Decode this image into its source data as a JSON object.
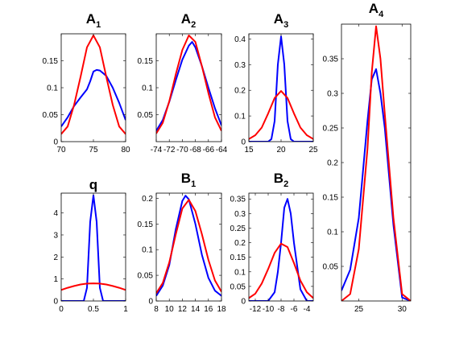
{
  "colors": {
    "series_a": "#0000ff",
    "series_b": "#ff0000",
    "axes": "#000000",
    "background": "#ffffff"
  },
  "chart_data": [
    {
      "id": "A1",
      "type": "line",
      "title": "A",
      "title_sub": "1",
      "xlim": [
        70,
        80
      ],
      "ylim": [
        0,
        0.2
      ],
      "xticks": [
        70,
        75,
        80
      ],
      "xtick_labels": [
        "70",
        "75",
        "80"
      ],
      "yticks": [
        0,
        0.05,
        0.1,
        0.15
      ],
      "ytick_labels": [
        "0",
        "0.05",
        "0.1",
        "0.15"
      ],
      "series": [
        {
          "color": "#0000ff",
          "x": [
            70,
            71,
            72,
            73,
            74,
            74.5,
            75,
            75.5,
            76,
            77,
            78,
            79,
            80
          ],
          "y": [
            0.028,
            0.045,
            0.066,
            0.082,
            0.097,
            0.112,
            0.13,
            0.133,
            0.132,
            0.122,
            0.1,
            0.072,
            0.04
          ]
        },
        {
          "color": "#ff0000",
          "x": [
            70,
            71,
            72,
            73,
            74,
            75,
            76,
            77,
            78,
            79,
            80
          ],
          "y": [
            0.014,
            0.028,
            0.068,
            0.12,
            0.175,
            0.197,
            0.175,
            0.12,
            0.068,
            0.028,
            0.014
          ]
        }
      ]
    },
    {
      "id": "A2",
      "type": "line",
      "title": "A",
      "title_sub": "2",
      "xlim": [
        -74,
        -64
      ],
      "ylim": [
        0,
        0.2
      ],
      "xticks": [
        -74,
        -72,
        -70,
        -68,
        -66,
        -64
      ],
      "xtick_labels": [
        "-74",
        "-72",
        "-70",
        "-68",
        "-66",
        "-64"
      ],
      "yticks": [
        0.05,
        0.1,
        0.15
      ],
      "ytick_labels": [
        "0.05",
        "0.1",
        "0.15"
      ],
      "series": [
        {
          "color": "#0000ff",
          "x": [
            -74,
            -73,
            -72,
            -71,
            -70,
            -69,
            -68.5,
            -68,
            -67,
            -66,
            -65,
            -64
          ],
          "y": [
            0.02,
            0.04,
            0.074,
            0.114,
            0.152,
            0.178,
            0.185,
            0.175,
            0.14,
            0.1,
            0.062,
            0.03
          ]
        },
        {
          "color": "#ff0000",
          "x": [
            -74,
            -73,
            -72,
            -71,
            -70,
            -69,
            -68,
            -67,
            -66,
            -65,
            -64
          ],
          "y": [
            0.015,
            0.035,
            0.075,
            0.125,
            0.17,
            0.197,
            0.185,
            0.14,
            0.09,
            0.045,
            0.02
          ]
        }
      ]
    },
    {
      "id": "A3",
      "type": "line",
      "title": "A",
      "title_sub": "3",
      "xlim": [
        15,
        25
      ],
      "ylim": [
        0,
        0.42
      ],
      "xticks": [
        15,
        20,
        25
      ],
      "xtick_labels": [
        "15",
        "20",
        "25"
      ],
      "yticks": [
        0,
        0.1,
        0.2,
        0.3,
        0.4
      ],
      "ytick_labels": [
        "0",
        "0.1",
        "0.2",
        "0.3",
        "0.4"
      ],
      "series": [
        {
          "color": "#0000ff",
          "x": [
            15,
            18,
            18.5,
            19,
            19.5,
            20,
            20.5,
            21,
            21.5,
            22,
            25
          ],
          "y": [
            0,
            0,
            0.01,
            0.08,
            0.3,
            0.41,
            0.3,
            0.08,
            0.01,
            0,
            0
          ]
        },
        {
          "color": "#ff0000",
          "x": [
            15,
            16,
            17,
            18,
            19,
            20,
            21,
            22,
            23,
            24,
            25
          ],
          "y": [
            0.01,
            0.025,
            0.055,
            0.11,
            0.17,
            0.197,
            0.17,
            0.11,
            0.055,
            0.025,
            0.01
          ]
        }
      ]
    },
    {
      "id": "A4",
      "type": "line",
      "title": "A",
      "title_sub": "4",
      "xlim": [
        23,
        31
      ],
      "ylim": [
        0,
        0.4
      ],
      "xticks": [
        25,
        30
      ],
      "xtick_labels": [
        "25",
        "30"
      ],
      "yticks": [
        0.05,
        0.1,
        0.15,
        0.2,
        0.25,
        0.3,
        0.35
      ],
      "ytick_labels": [
        "0.05",
        "0.1",
        "0.15",
        "0.2",
        "0.25",
        "0.3",
        "0.35"
      ],
      "series": [
        {
          "color": "#0000ff",
          "x": [
            23,
            24,
            25,
            26,
            26.5,
            27,
            27.5,
            28,
            29,
            30,
            31
          ],
          "y": [
            0.015,
            0.045,
            0.12,
            0.26,
            0.32,
            0.335,
            0.3,
            0.25,
            0.11,
            0.005,
            0
          ]
        },
        {
          "color": "#ff0000",
          "x": [
            23,
            24,
            25,
            26,
            26.5,
            27,
            27.5,
            28,
            29,
            30,
            31
          ],
          "y": [
            0,
            0.01,
            0.075,
            0.22,
            0.33,
            0.397,
            0.35,
            0.27,
            0.12,
            0.01,
            0
          ]
        }
      ]
    },
    {
      "id": "q",
      "type": "line",
      "title": "q",
      "title_sub": "",
      "xlim": [
        0,
        1
      ],
      "ylim": [
        0,
        4.9
      ],
      "xticks": [
        0,
        0.5,
        1
      ],
      "xtick_labels": [
        "0",
        "0.5",
        "1"
      ],
      "yticks": [
        0,
        1,
        2,
        3,
        4
      ],
      "ytick_labels": [
        "0",
        "1",
        "2",
        "3",
        "4"
      ],
      "series": [
        {
          "color": "#0000ff",
          "x": [
            0,
            0.35,
            0.4,
            0.45,
            0.5,
            0.55,
            0.6,
            0.65,
            1
          ],
          "y": [
            0,
            0,
            0.6,
            3.6,
            4.8,
            3.6,
            0.6,
            0,
            0
          ]
        },
        {
          "color": "#ff0000",
          "x": [
            0,
            0.1,
            0.2,
            0.3,
            0.4,
            0.5,
            0.6,
            0.7,
            0.8,
            0.9,
            1
          ],
          "y": [
            0.5,
            0.6,
            0.68,
            0.75,
            0.79,
            0.8,
            0.79,
            0.75,
            0.68,
            0.6,
            0.5
          ]
        }
      ]
    },
    {
      "id": "B1",
      "type": "line",
      "title": "B",
      "title_sub": "1",
      "xlim": [
        8,
        18
      ],
      "ylim": [
        0,
        0.21
      ],
      "xticks": [
        8,
        10,
        12,
        14,
        16,
        18
      ],
      "xtick_labels": [
        "8",
        "10",
        "12",
        "14",
        "16",
        "18"
      ],
      "yticks": [
        0,
        0.05,
        0.1,
        0.15,
        0.2
      ],
      "ytick_labels": [
        "0",
        "0.05",
        "0.1",
        "0.15",
        "0.2"
      ],
      "series": [
        {
          "color": "#0000ff",
          "x": [
            8,
            9,
            10,
            11,
            12,
            12.5,
            13,
            14,
            15,
            16,
            17,
            18
          ],
          "y": [
            0.01,
            0.03,
            0.07,
            0.14,
            0.195,
            0.205,
            0.198,
            0.15,
            0.09,
            0.045,
            0.02,
            0.01
          ]
        },
        {
          "color": "#ff0000",
          "x": [
            8,
            9,
            10,
            11,
            12,
            13,
            14,
            15,
            16,
            17,
            18
          ],
          "y": [
            0.015,
            0.035,
            0.075,
            0.13,
            0.18,
            0.197,
            0.175,
            0.13,
            0.08,
            0.04,
            0.018
          ]
        }
      ]
    },
    {
      "id": "B2",
      "type": "line",
      "title": "B",
      "title_sub": "2",
      "xlim": [
        -13,
        -3
      ],
      "ylim": [
        0,
        0.37
      ],
      "xticks": [
        -12,
        -10,
        -8,
        -6,
        -4
      ],
      "xtick_labels": [
        "-12",
        "-10",
        "-8",
        "-6",
        "-4"
      ],
      "yticks": [
        0,
        0.05,
        0.1,
        0.15,
        0.2,
        0.25,
        0.3,
        0.35
      ],
      "ytick_labels": [
        "0",
        "0.05",
        "0.1",
        "0.15",
        "0.2",
        "0.25",
        "0.3",
        "0.35"
      ],
      "series": [
        {
          "color": "#0000ff",
          "x": [
            -13,
            -10,
            -9,
            -8.5,
            -8,
            -7.5,
            -7,
            -6.5,
            -6,
            -5,
            -4,
            -3
          ],
          "y": [
            0,
            0,
            0.03,
            0.1,
            0.2,
            0.32,
            0.35,
            0.3,
            0.2,
            0.04,
            0,
            0
          ]
        },
        {
          "color": "#ff0000",
          "x": [
            -13,
            -12,
            -11,
            -10,
            -9,
            -8,
            -7,
            -6,
            -5,
            -4,
            -3
          ],
          "y": [
            0.01,
            0.025,
            0.06,
            0.11,
            0.165,
            0.197,
            0.185,
            0.13,
            0.07,
            0.03,
            0.01
          ]
        }
      ]
    }
  ]
}
